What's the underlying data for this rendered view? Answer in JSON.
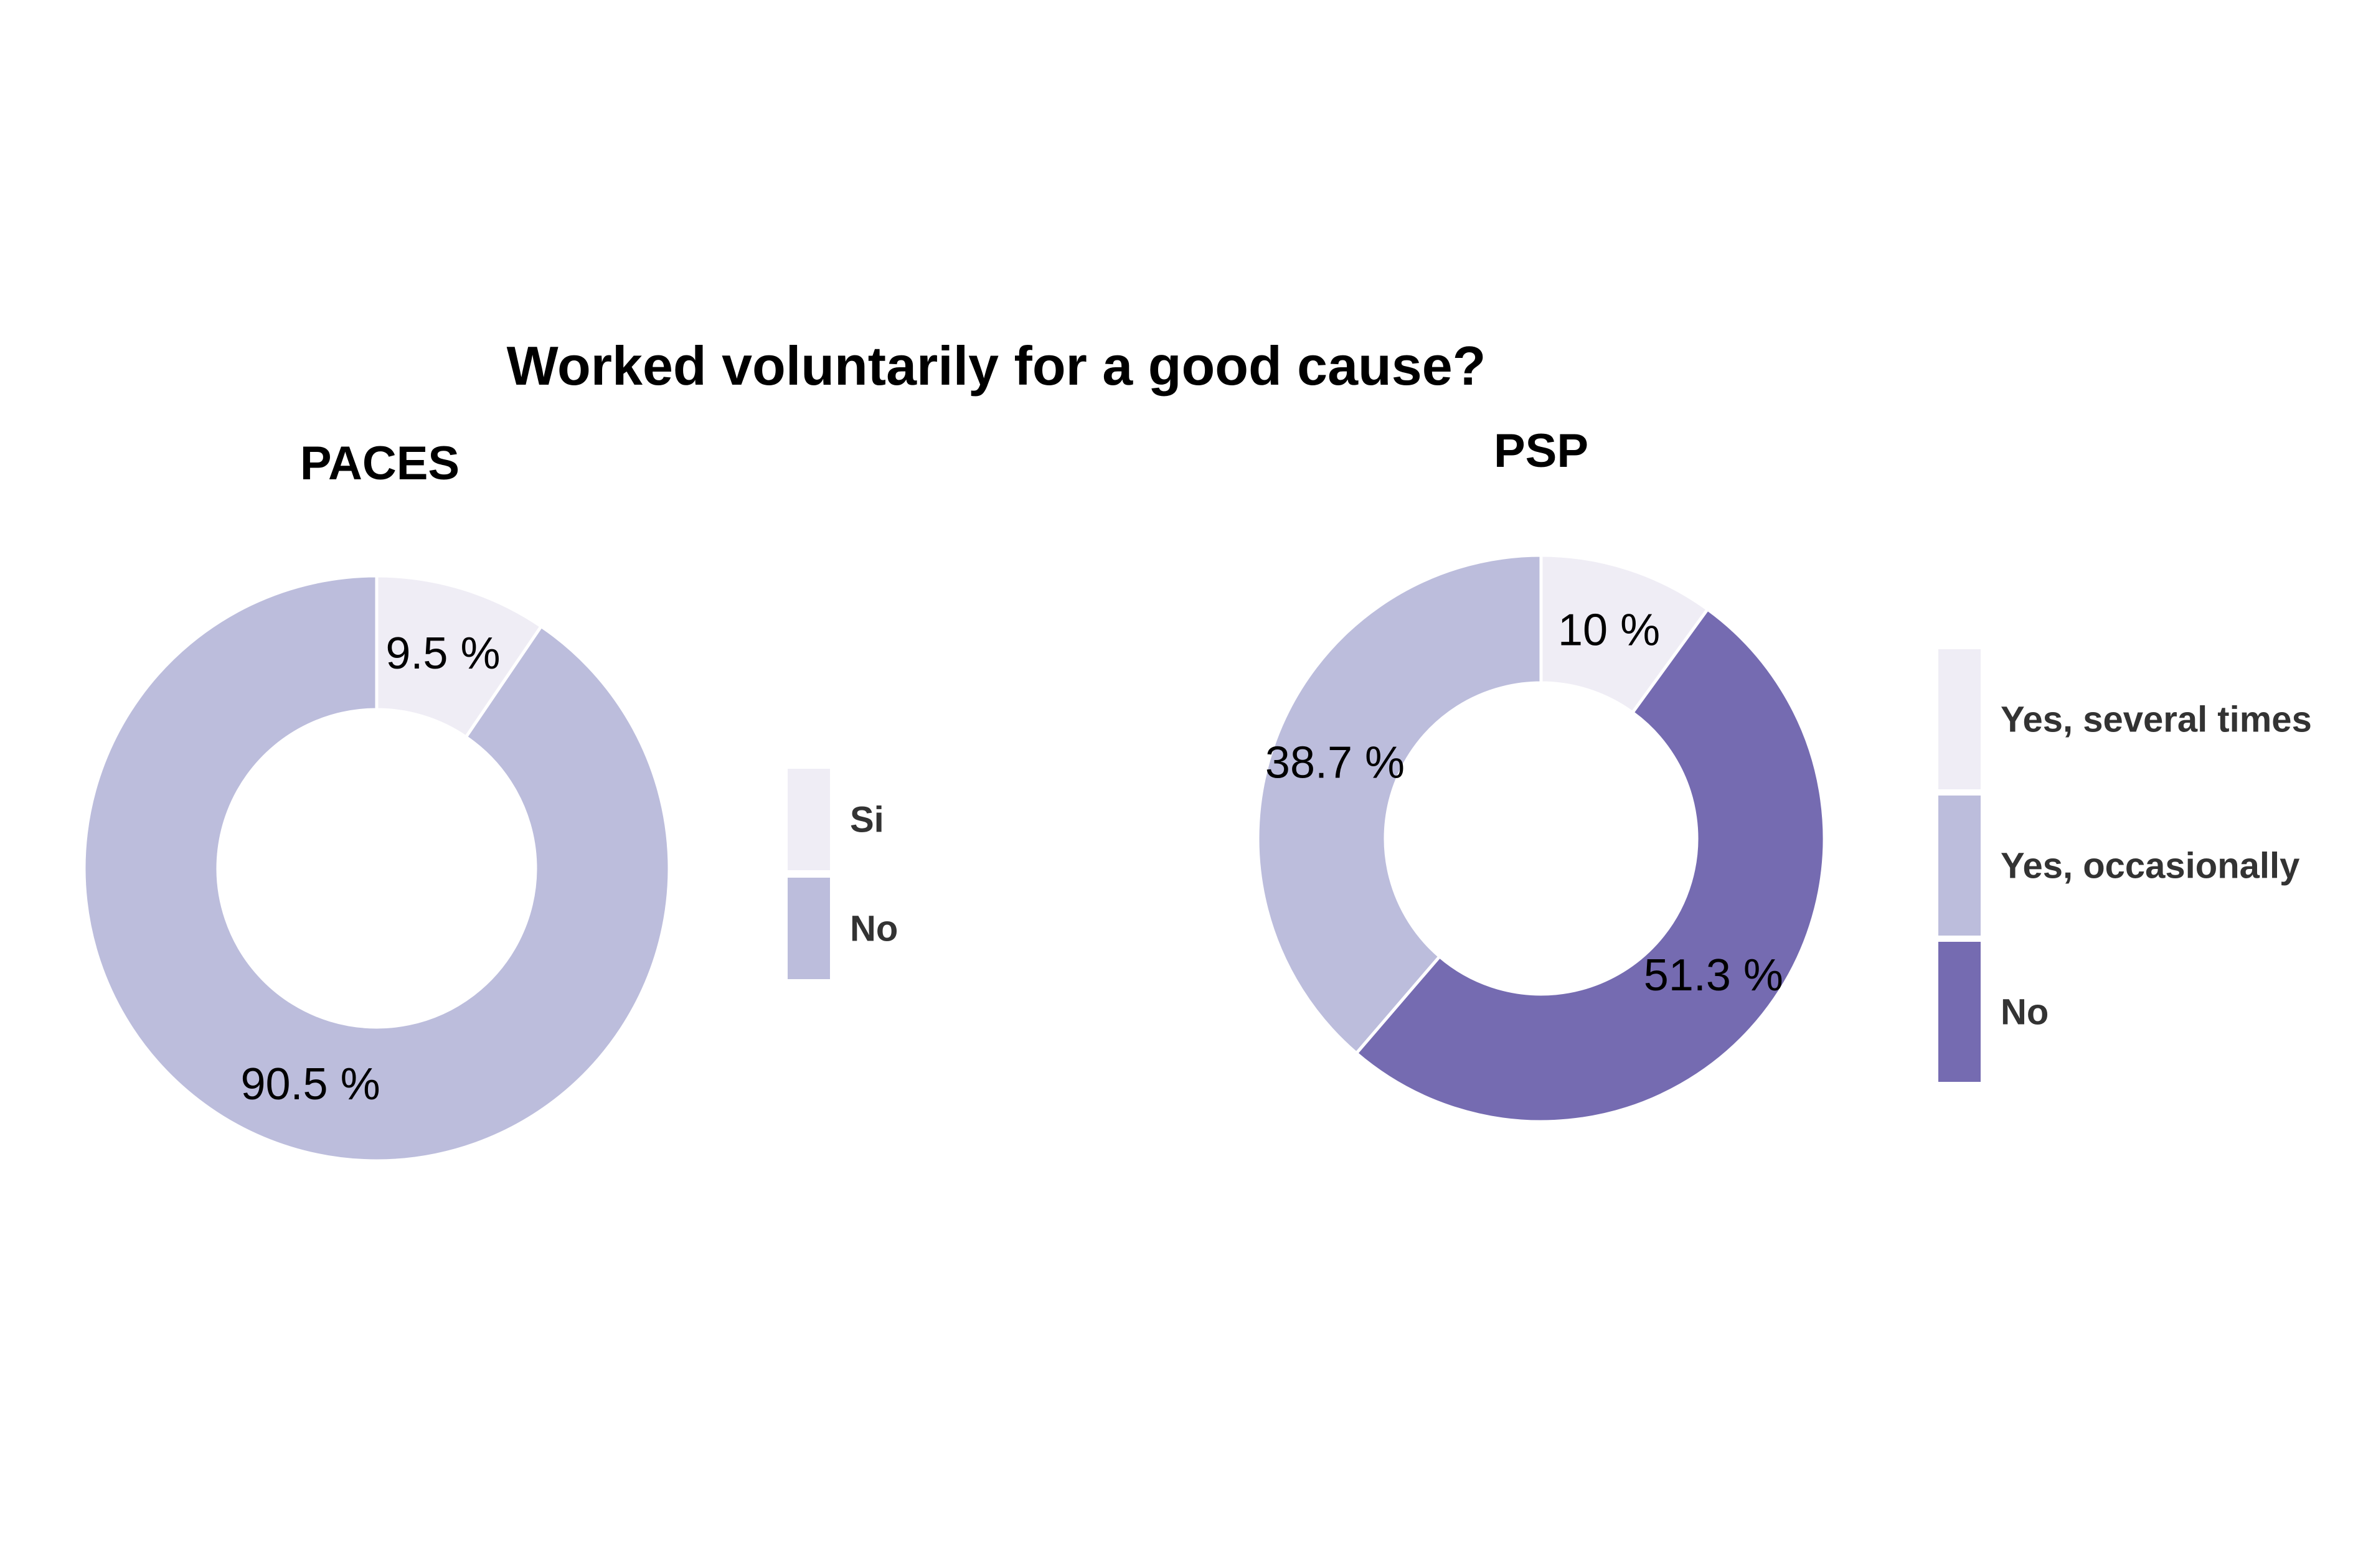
{
  "chart_data": {
    "type": "pie",
    "title": "Worked voluntarily for a good cause?",
    "colors": {
      "lightest": "#EFEDF5",
      "medium": "#BCBDDC",
      "dark": "#756BB1"
    },
    "panels": [
      {
        "title": "PACES",
        "slices": [
          {
            "category": "Si",
            "value": 9.5,
            "label": "9.5 %",
            "color": "#EFEDF5"
          },
          {
            "category": "No",
            "value": 90.5,
            "label": "90.5 %",
            "color": "#BCBDDC"
          }
        ],
        "legend": [
          {
            "label": "Si",
            "color": "#EFEDF5"
          },
          {
            "label": "No",
            "color": "#BCBDDC"
          }
        ]
      },
      {
        "title": "PSP",
        "slices": [
          {
            "category": "Yes, several times",
            "value": 10,
            "label": "10 %",
            "color": "#EFEDF5"
          },
          {
            "category": "No",
            "value": 51.3,
            "label": "51.3 %",
            "color": "#756BB1"
          },
          {
            "category": "Yes, occasionally",
            "value": 38.7,
            "label": "38.7 %",
            "color": "#BCBDDC"
          }
        ],
        "legend": [
          {
            "label": "Yes, several times",
            "color": "#EFEDF5"
          },
          {
            "label": "Yes, occasionally",
            "color": "#BCBDDC"
          },
          {
            "label": "No",
            "color": "#756BB1"
          }
        ]
      }
    ]
  }
}
